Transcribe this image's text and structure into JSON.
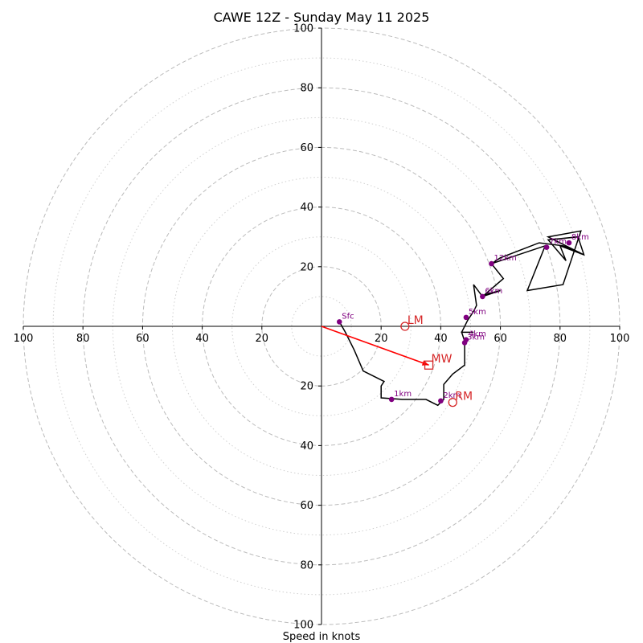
{
  "chart_data": {
    "type": "hodograph",
    "title": "CAWE 12Z - Sunday May 11 2025",
    "xlabel": "Speed in knots",
    "xlim": [
      -100,
      100
    ],
    "ylim": [
      -100,
      100
    ],
    "rings": {
      "major": [
        20,
        40,
        60,
        80,
        100
      ],
      "minor": [
        10,
        30,
        50,
        70,
        90
      ]
    },
    "x_ticks": [
      {
        "value": -100,
        "label": "100"
      },
      {
        "value": -80,
        "label": "80"
      },
      {
        "value": -60,
        "label": "60"
      },
      {
        "value": -40,
        "label": "40"
      },
      {
        "value": -20,
        "label": "20"
      },
      {
        "value": 20,
        "label": "20"
      },
      {
        "value": 40,
        "label": "40"
      },
      {
        "value": 60,
        "label": "60"
      },
      {
        "value": 80,
        "label": "80"
      },
      {
        "value": 100,
        "label": "100"
      }
    ],
    "y_ticks": [
      {
        "value": 100,
        "label": "100"
      },
      {
        "value": 80,
        "label": "80"
      },
      {
        "value": 60,
        "label": "60"
      },
      {
        "value": 40,
        "label": "40"
      },
      {
        "value": 20,
        "label": "20"
      },
      {
        "value": -20,
        "label": "20"
      },
      {
        "value": -40,
        "label": "40"
      },
      {
        "value": -60,
        "label": "60"
      },
      {
        "value": -80,
        "label": "80"
      },
      {
        "value": -100,
        "label": "100"
      }
    ],
    "trace": [
      [
        6,
        1.5
      ],
      [
        8,
        -2
      ],
      [
        11,
        -8
      ],
      [
        14,
        -15
      ],
      [
        21,
        -18.5
      ],
      [
        20,
        -20
      ],
      [
        20,
        -24
      ],
      [
        27,
        -24.5
      ],
      [
        35,
        -24.5
      ],
      [
        39,
        -26.5
      ],
      [
        41,
        -24.5
      ],
      [
        41,
        -19.5
      ],
      [
        44,
        -16
      ],
      [
        48,
        -13
      ],
      [
        48,
        -5
      ],
      [
        47,
        -2
      ],
      [
        51,
        -2
      ],
      [
        47,
        -2
      ],
      [
        49,
        2
      ],
      [
        51,
        5
      ],
      [
        52,
        7
      ],
      [
        51,
        14
      ],
      [
        54,
        10
      ],
      [
        56,
        11
      ],
      [
        60,
        12
      ],
      [
        54,
        10
      ],
      [
        61,
        16
      ],
      [
        57,
        21
      ],
      [
        75,
        27
      ],
      [
        69,
        12
      ],
      [
        81,
        14
      ],
      [
        87,
        32
      ],
      [
        76,
        30
      ],
      [
        78,
        29
      ],
      [
        88,
        24
      ],
      [
        80,
        27
      ],
      [
        82,
        22
      ],
      [
        76,
        29
      ],
      [
        86,
        30
      ],
      [
        88,
        24
      ],
      [
        81,
        27
      ],
      [
        73,
        28
      ],
      [
        60,
        23
      ],
      [
        57,
        21
      ]
    ],
    "levels": [
      {
        "label": "Sfc",
        "u": 6,
        "v": 1.5
      },
      {
        "label": "1km",
        "u": 23.5,
        "v": -24.5
      },
      {
        "label": "2km",
        "u": 40,
        "v": -25
      },
      {
        "label": "3km",
        "u": 48,
        "v": -5.5
      },
      {
        "label": "4km",
        "u": 48.5,
        "v": -4.5
      },
      {
        "label": "5km",
        "u": 48.5,
        "v": 3
      },
      {
        "label": "6km",
        "u": 54,
        "v": 10
      },
      {
        "label": "12km",
        "u": 57,
        "v": 21
      },
      {
        "label": "7km",
        "u": 75.5,
        "v": 26.5
      },
      {
        "label": "8km",
        "u": 83,
        "v": 28
      }
    ],
    "storm_motion": {
      "mean_wind": {
        "label": "MW",
        "u": 36,
        "v": -13
      },
      "left_mover": {
        "label": "LM",
        "u": 28,
        "v": 0
      },
      "right_mover": {
        "label": "RM",
        "u": 44,
        "v": -25.5
      }
    },
    "colors": {
      "trace": "#000000",
      "level_marker": "#800080",
      "storm_motion": "#d62728",
      "arrow": "#ff0000",
      "ring": "#bbbbbb",
      "minor_ring": "#d0d0d0"
    }
  }
}
